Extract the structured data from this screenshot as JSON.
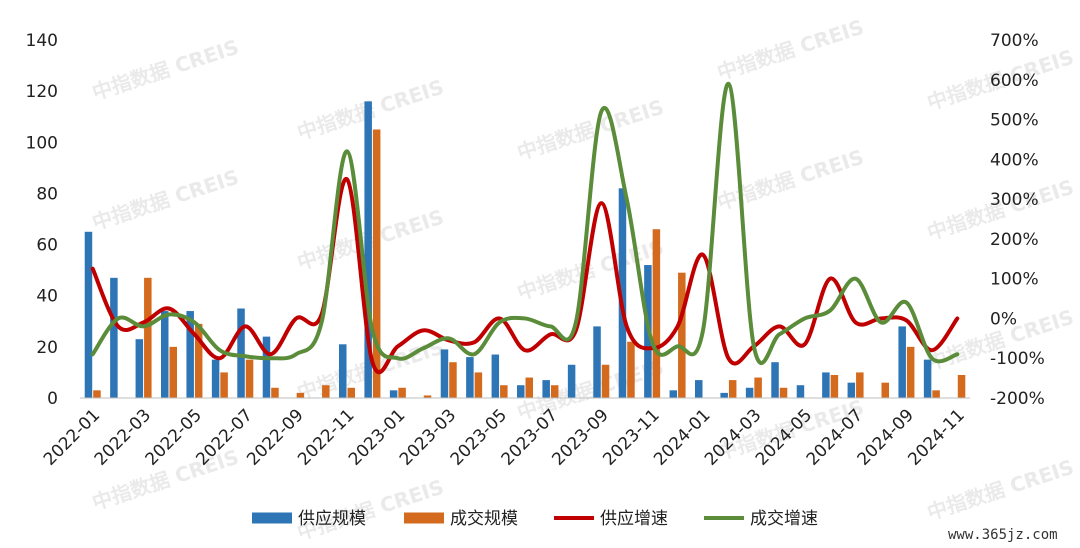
{
  "watermark_text": "中指数据 CREIS",
  "site_text": "www.365jz.com",
  "chart_data": {
    "type": "bar",
    "categories": [
      "2022-01",
      "2022-02",
      "2022-03",
      "2022-04",
      "2022-05",
      "2022-06",
      "2022-07",
      "2022-08",
      "2022-09",
      "2022-10",
      "2022-11",
      "2022-12",
      "2023-01",
      "2023-02",
      "2023-03",
      "2023-04",
      "2023-05",
      "2023-06",
      "2023-07",
      "2023-08",
      "2023-09",
      "2023-10",
      "2023-11",
      "2023-12",
      "2024-01",
      "2024-02",
      "2024-03",
      "2024-04",
      "2024-05",
      "2024-06",
      "2024-07",
      "2024-08",
      "2024-09",
      "2024-10",
      "2024-11"
    ],
    "x_tick_labels": [
      "2022-01",
      "2022-03",
      "2022-05",
      "2022-07",
      "2022-09",
      "2022-11",
      "2023-01",
      "2023-03",
      "2023-05",
      "2023-07",
      "2023-09",
      "2023-11",
      "2024-01",
      "2024-03",
      "2024-05",
      "2024-07",
      "2024-09",
      "2024-11"
    ],
    "y_left": {
      "ylim": [
        0,
        140
      ],
      "ticks": [
        "0",
        "20",
        "40",
        "60",
        "80",
        "100",
        "120",
        "140"
      ]
    },
    "y_right": {
      "ylim": [
        -200,
        700
      ],
      "ticks": [
        "-200%",
        "-100%",
        "0%",
        "100%",
        "200%",
        "300%",
        "400%",
        "500%",
        "600%",
        "700%"
      ]
    },
    "series": [
      {
        "name": "供应规模",
        "kind": "bar",
        "axis": "left",
        "color": "#2e75b6",
        "values": [
          65,
          47,
          23,
          34,
          34,
          15,
          35,
          24,
          0,
          0,
          21,
          116,
          3,
          0,
          19,
          16,
          17,
          5,
          7,
          13,
          28,
          82,
          52,
          3,
          7,
          2,
          4,
          14,
          5,
          10,
          6,
          0,
          28,
          15,
          0
        ]
      },
      {
        "name": "成交规模",
        "kind": "bar",
        "axis": "left",
        "color": "#d36a1e",
        "values": [
          3,
          0,
          47,
          20,
          29,
          10,
          15,
          4,
          2,
          5,
          4,
          105,
          4,
          1,
          14,
          10,
          5,
          8,
          5,
          0,
          13,
          22,
          66,
          49,
          0,
          7,
          8,
          4,
          0,
          9,
          10,
          6,
          20,
          3,
          9
        ]
      },
      {
        "name": "供应增速",
        "kind": "line",
        "axis": "right",
        "color": "#c00000",
        "values": [
          125,
          -20,
          -10,
          25,
          -40,
          -100,
          -20,
          -90,
          0,
          10,
          350,
          -110,
          -70,
          -30,
          -55,
          -60,
          0,
          -80,
          -40,
          -30,
          290,
          -20,
          -75,
          -20,
          160,
          -100,
          -70,
          -20,
          -65,
          100,
          -10,
          0,
          -5,
          -80,
          0
        ]
      },
      {
        "name": "成交增速",
        "kind": "line",
        "axis": "right",
        "color": "#5b8c3a",
        "values": [
          -90,
          0,
          -20,
          10,
          -10,
          -80,
          -95,
          -100,
          -90,
          -10,
          420,
          -30,
          -100,
          -75,
          -50,
          -90,
          -10,
          0,
          -20,
          -10,
          520,
          300,
          -60,
          -70,
          -30,
          590,
          -70,
          -40,
          0,
          20,
          100,
          -10,
          40,
          -100,
          -90
        ]
      }
    ]
  }
}
